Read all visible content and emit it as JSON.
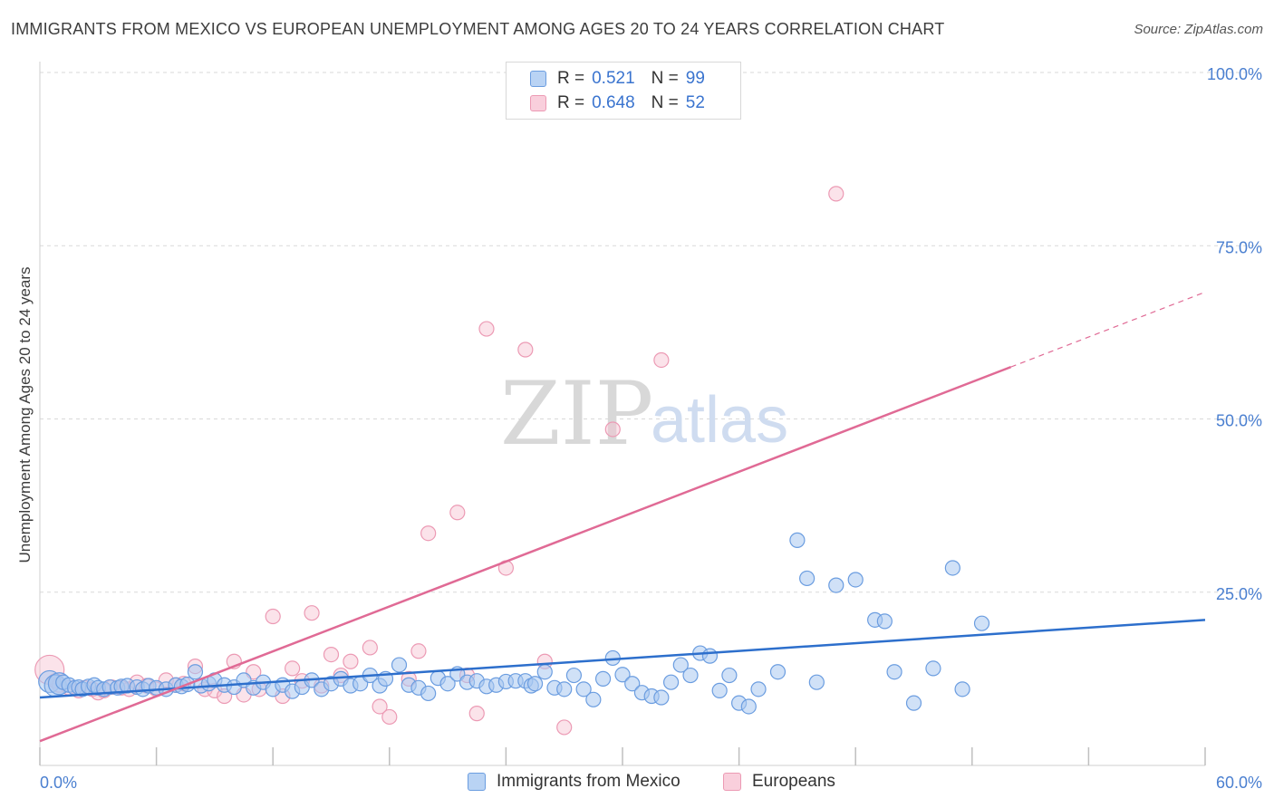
{
  "header": {
    "title": "IMMIGRANTS FROM MEXICO VS EUROPEAN UNEMPLOYMENT AMONG AGES 20 TO 24 YEARS CORRELATION CHART",
    "source": "Source: ZipAtlas.com"
  },
  "watermark": {
    "zip": "ZIP",
    "atlas": "atlas"
  },
  "legend": {
    "rows": [
      {
        "r_label": "R =",
        "r_value": "0.521",
        "n_label": "N =",
        "n_value": "99"
      },
      {
        "r_label": "R =",
        "r_value": "0.648",
        "n_label": "N =",
        "n_value": "52"
      }
    ]
  },
  "bottom_legend": {
    "mexico": "Immigrants from Mexico",
    "europeans": "Europeans"
  },
  "colors": {
    "mexico_fill": "#a9c8f0",
    "mexico_stroke": "#6b9de0",
    "mexico_line": "#2d6fcc",
    "europe_fill": "#f7c0d0",
    "europe_stroke": "#ec9ab4",
    "europe_line": "#e06a95",
    "axis_tick_text": "#4a7fd0"
  },
  "chart_data": {
    "type": "scatter",
    "title": "IMMIGRANTS FROM MEXICO VS EUROPEAN UNEMPLOYMENT AMONG AGES 20 TO 24 YEARS CORRELATION CHART",
    "xlabel": "",
    "ylabel": "Unemployment Among Ages 20 to 24 years",
    "xlim": [
      0,
      60
    ],
    "ylim": [
      0,
      100
    ],
    "x_tick_labels": [
      "0.0%",
      "60.0%"
    ],
    "y_tick_labels": [
      "25.0%",
      "50.0%",
      "75.0%",
      "100.0%"
    ],
    "y_ticks": [
      25,
      50,
      75,
      100
    ],
    "grid": true,
    "legend_position": "top-center",
    "series": [
      {
        "name": "Immigrants from Mexico",
        "R": 0.521,
        "N": 99,
        "trend": {
          "x": [
            0,
            60
          ],
          "y": [
            9.8,
            21.0
          ]
        },
        "points": [
          [
            0.5,
            12.1
          ],
          [
            0.8,
            11.5
          ],
          [
            1.0,
            11.8
          ],
          [
            1.2,
            12.0
          ],
          [
            1.5,
            11.6
          ],
          [
            1.8,
            11.2
          ],
          [
            2.0,
            11.3
          ],
          [
            2.2,
            11.0
          ],
          [
            2.5,
            11.4
          ],
          [
            2.8,
            11.6
          ],
          [
            3.0,
            11.2
          ],
          [
            3.3,
            11.0
          ],
          [
            3.6,
            11.3
          ],
          [
            4.0,
            11.2
          ],
          [
            4.2,
            11.4
          ],
          [
            4.5,
            11.5
          ],
          [
            5.0,
            11.3
          ],
          [
            5.3,
            11.0
          ],
          [
            5.6,
            11.5
          ],
          [
            6.0,
            11.2
          ],
          [
            6.5,
            11.0
          ],
          [
            7.0,
            11.6
          ],
          [
            7.3,
            11.4
          ],
          [
            7.6,
            11.7
          ],
          [
            8.0,
            13.5
          ],
          [
            8.3,
            11.5
          ],
          [
            8.7,
            11.8
          ],
          [
            9.0,
            12.3
          ],
          [
            9.5,
            11.6
          ],
          [
            10.0,
            11.3
          ],
          [
            10.5,
            12.3
          ],
          [
            11.0,
            11.2
          ],
          [
            11.5,
            12.0
          ],
          [
            12.0,
            11.0
          ],
          [
            12.5,
            11.6
          ],
          [
            13.0,
            10.7
          ],
          [
            13.5,
            11.3
          ],
          [
            14.0,
            12.3
          ],
          [
            14.5,
            11.0
          ],
          [
            15.0,
            11.8
          ],
          [
            15.5,
            12.5
          ],
          [
            16.0,
            11.5
          ],
          [
            16.5,
            11.8
          ],
          [
            17.0,
            13.0
          ],
          [
            17.5,
            11.5
          ],
          [
            17.8,
            12.5
          ],
          [
            18.5,
            14.5
          ],
          [
            19.0,
            11.6
          ],
          [
            19.5,
            11.2
          ],
          [
            20.0,
            10.4
          ],
          [
            20.5,
            12.6
          ],
          [
            21.0,
            11.8
          ],
          [
            21.5,
            13.2
          ],
          [
            22.0,
            12.0
          ],
          [
            22.5,
            12.2
          ],
          [
            23.0,
            11.4
          ],
          [
            23.5,
            11.6
          ],
          [
            24.0,
            12.1
          ],
          [
            24.5,
            12.2
          ],
          [
            25.0,
            12.2
          ],
          [
            25.3,
            11.5
          ],
          [
            25.5,
            11.8
          ],
          [
            26.0,
            13.5
          ],
          [
            26.5,
            11.2
          ],
          [
            27.0,
            11.0
          ],
          [
            27.5,
            13.0
          ],
          [
            28.0,
            11.0
          ],
          [
            28.5,
            9.5
          ],
          [
            29.0,
            12.5
          ],
          [
            29.5,
            15.5
          ],
          [
            30.0,
            13.1
          ],
          [
            30.5,
            11.8
          ],
          [
            31.0,
            10.5
          ],
          [
            31.5,
            10.0
          ],
          [
            32.0,
            9.8
          ],
          [
            32.5,
            12.0
          ],
          [
            33.0,
            14.5
          ],
          [
            33.5,
            13.0
          ],
          [
            34.0,
            16.2
          ],
          [
            34.5,
            15.8
          ],
          [
            35.0,
            10.8
          ],
          [
            35.5,
            13.0
          ],
          [
            36.0,
            9.0
          ],
          [
            36.5,
            8.5
          ],
          [
            37.0,
            11.0
          ],
          [
            38.0,
            13.5
          ],
          [
            39.0,
            32.5
          ],
          [
            39.5,
            27.0
          ],
          [
            40.0,
            12.0
          ],
          [
            41.0,
            26.0
          ],
          [
            42.0,
            26.8
          ],
          [
            43.0,
            21.0
          ],
          [
            43.5,
            20.8
          ],
          [
            44.0,
            13.5
          ],
          [
            45.0,
            9.0
          ],
          [
            46.0,
            14.0
          ],
          [
            47.0,
            28.5
          ],
          [
            47.5,
            11.0
          ],
          [
            48.5,
            20.5
          ]
        ]
      },
      {
        "name": "Europeans",
        "R": 0.648,
        "N": 52,
        "trend": {
          "x": [
            0,
            50
          ],
          "y": [
            3.5,
            57.5
          ]
        },
        "trend_dashed": {
          "x": [
            50,
            60
          ],
          "y": [
            57.5,
            68.3
          ]
        },
        "points": [
          [
            0.5,
            13.8
          ],
          [
            0.8,
            12.2
          ],
          [
            1.0,
            11.6
          ],
          [
            1.5,
            11.2
          ],
          [
            2.0,
            10.8
          ],
          [
            2.3,
            11.2
          ],
          [
            2.7,
            11.0
          ],
          [
            3.0,
            10.5
          ],
          [
            3.3,
            10.8
          ],
          [
            3.7,
            11.3
          ],
          [
            4.2,
            11.2
          ],
          [
            4.6,
            11.0
          ],
          [
            5.0,
            12.0
          ],
          [
            5.5,
            11.5
          ],
          [
            6.0,
            11.0
          ],
          [
            6.5,
            12.3
          ],
          [
            7.0,
            11.6
          ],
          [
            7.4,
            11.8
          ],
          [
            8.0,
            14.3
          ],
          [
            8.5,
            11.0
          ],
          [
            9.0,
            10.8
          ],
          [
            9.5,
            10.0
          ],
          [
            10.0,
            15.0
          ],
          [
            10.5,
            10.2
          ],
          [
            11.0,
            13.5
          ],
          [
            11.3,
            11.0
          ],
          [
            12.0,
            21.5
          ],
          [
            12.5,
            10.0
          ],
          [
            13.0,
            14.0
          ],
          [
            13.5,
            12.2
          ],
          [
            14.0,
            22.0
          ],
          [
            14.5,
            11.5
          ],
          [
            15.0,
            16.0
          ],
          [
            15.5,
            13.0
          ],
          [
            16.0,
            15.0
          ],
          [
            17.0,
            17.0
          ],
          [
            17.5,
            8.5
          ],
          [
            18.0,
            7.0
          ],
          [
            19.0,
            12.5
          ],
          [
            19.5,
            16.5
          ],
          [
            20.0,
            33.5
          ],
          [
            21.5,
            36.5
          ],
          [
            22.0,
            13.0
          ],
          [
            22.5,
            7.5
          ],
          [
            23.0,
            63.0
          ],
          [
            24.0,
            28.5
          ],
          [
            25.0,
            60.0
          ],
          [
            26.0,
            15.0
          ],
          [
            27.0,
            5.5
          ],
          [
            29.5,
            48.5
          ],
          [
            32.0,
            58.5
          ],
          [
            41.0,
            82.5
          ]
        ]
      }
    ]
  }
}
